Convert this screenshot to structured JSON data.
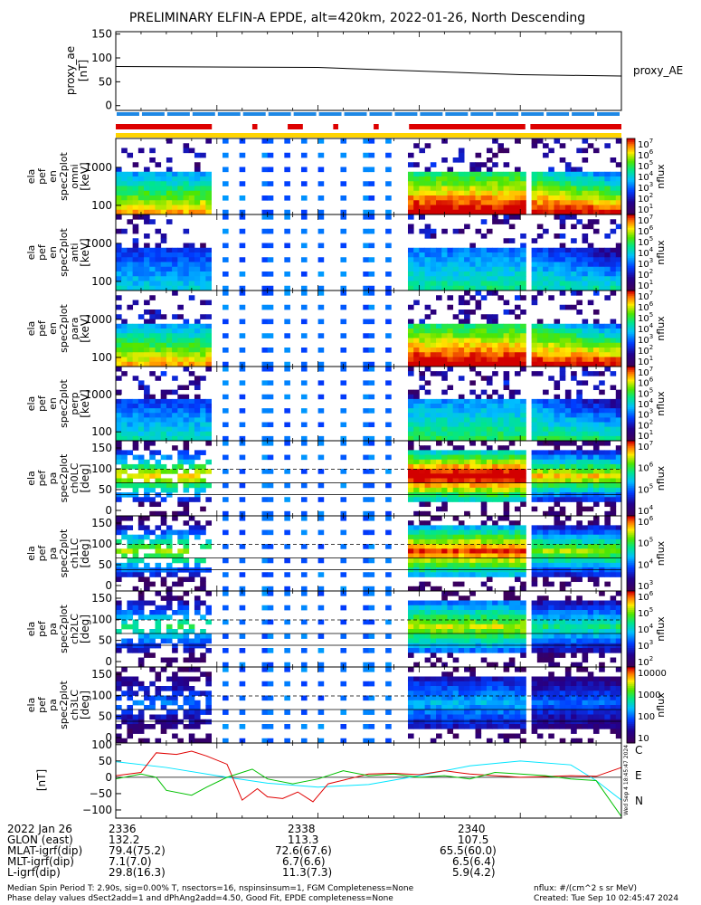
{
  "title": "PRELIMINARY ELFIN-A EPDE, alt=420km, 2022-01-26, North Descending",
  "chart_data": [
    {
      "type": "line",
      "panel": "proxy_ae",
      "ylabel": "proxy_ae",
      "yunits": "[nT]",
      "right_label": "proxy_AE",
      "ylim": [
        -10,
        155
      ],
      "yticks": [
        "150",
        "100",
        "50",
        "0"
      ],
      "x": [
        0,
        0.4,
        0.8,
        1.0
      ],
      "values": [
        82,
        80,
        65,
        62
      ]
    },
    {
      "type": "heatmap",
      "panel": "bars",
      "science_zones": [
        [
          0.0,
          0.19
        ],
        [
          0.27,
          0.28
        ],
        [
          0.34,
          0.37
        ],
        [
          0.43,
          0.44
        ],
        [
          0.51,
          0.52
        ],
        [
          0.58,
          0.81
        ],
        [
          0.82,
          1.0
        ]
      ],
      "yellow_bar": [
        0.0,
        1.0
      ]
    },
    {
      "type": "heatmap",
      "panel": "en_omni",
      "ylabel": [
        "ela",
        "pef",
        "en",
        "spec2plot",
        "omni"
      ],
      "yunits": "[keV]",
      "yticks": [
        "1000",
        "100"
      ],
      "cbar_label": "nflux",
      "cbar_ticks": [
        "10",
        "10",
        "10",
        "10",
        "10",
        "10",
        "10"
      ],
      "cbar_exps": [
        "7",
        "6",
        "5",
        "4",
        "3",
        "2",
        "1"
      ]
    },
    {
      "type": "heatmap",
      "panel": "en_anti",
      "ylabel": [
        "ela",
        "pef",
        "en",
        "spec2plot",
        "anti"
      ],
      "yunits": "[keV]",
      "yticks": [
        "1000",
        "100"
      ],
      "cbar_label": "nflux",
      "cbar_ticks": [
        "10",
        "10",
        "10",
        "10",
        "10",
        "10",
        "10"
      ],
      "cbar_exps": [
        "7",
        "6",
        "5",
        "4",
        "3",
        "2",
        "1"
      ]
    },
    {
      "type": "heatmap",
      "panel": "en_para",
      "ylabel": [
        "ela",
        "pef",
        "en",
        "spec2plot",
        "para"
      ],
      "yunits": "[keV]",
      "yticks": [
        "1000",
        "100"
      ],
      "cbar_label": "nflux",
      "cbar_ticks": [
        "10",
        "10",
        "10",
        "10",
        "10",
        "10",
        "10"
      ],
      "cbar_exps": [
        "7",
        "6",
        "5",
        "4",
        "3",
        "2",
        "1"
      ]
    },
    {
      "type": "heatmap",
      "panel": "en_perp",
      "ylabel": [
        "ela",
        "pef",
        "en",
        "spec2plot",
        "perp"
      ],
      "yunits": "[keV]",
      "yticks": [
        "1000",
        "100"
      ],
      "cbar_label": "nflux",
      "cbar_ticks": [
        "10",
        "10",
        "10",
        "10",
        "10",
        "10",
        "10"
      ],
      "cbar_exps": [
        "7",
        "6",
        "5",
        "4",
        "3",
        "2",
        "1"
      ]
    },
    {
      "type": "heatmap",
      "panel": "ch0LC",
      "ylabel": [
        "ela",
        "pef",
        "pa",
        "spec2plot",
        "ch0LC"
      ],
      "yunits": "[deg]",
      "yticks": [
        "150",
        "100",
        "50",
        "0"
      ],
      "cbar_label": "nflux",
      "cbar_ticks": [
        "10",
        "10",
        "10",
        "10"
      ],
      "cbar_exps": [
        "7",
        "6",
        "5",
        "4"
      ]
    },
    {
      "type": "heatmap",
      "panel": "ch1LC",
      "ylabel": [
        "ela",
        "pef",
        "pa",
        "spec2plot",
        "ch1LC"
      ],
      "yunits": "[deg]",
      "yticks": [
        "150",
        "100",
        "50",
        "0"
      ],
      "cbar_label": "nflux",
      "cbar_ticks": [
        "10",
        "10",
        "10",
        "10"
      ],
      "cbar_exps": [
        "6",
        "5",
        "4",
        "3"
      ]
    },
    {
      "type": "heatmap",
      "panel": "ch2LC",
      "ylabel": [
        "ela",
        "pef",
        "pa",
        "spec2plot",
        "ch2LC"
      ],
      "yunits": "[deg]",
      "yticks": [
        "150",
        "100",
        "50",
        "0"
      ],
      "cbar_label": "nflux",
      "cbar_ticks": [
        "10",
        "10",
        "10",
        "10",
        "10"
      ],
      "cbar_exps": [
        "6",
        "5",
        "4",
        "3",
        "2"
      ]
    },
    {
      "type": "heatmap",
      "panel": "ch3LC",
      "ylabel": [
        "ela",
        "pef",
        "pa",
        "spec2plot",
        "ch3LC"
      ],
      "yunits": "[deg]",
      "yticks": [
        "150",
        "100",
        "50",
        "0"
      ],
      "cbar_label": "nflux",
      "cbar_ticks": [
        "10000",
        "1000",
        "100",
        "10"
      ],
      "cbar_exps": [
        "",
        "",
        "",
        ""
      ]
    },
    {
      "type": "line",
      "panel": "fgm",
      "yunits": "[nT]",
      "ylim": [
        -125,
        105
      ],
      "yticks": [
        "100",
        "50",
        "0",
        "−50",
        "−100"
      ],
      "series": [
        {
          "name": "C",
          "color": "#00e5ff",
          "x": [
            0,
            0.1,
            0.2,
            0.3,
            0.4,
            0.5,
            0.6,
            0.7,
            0.8,
            0.9,
            0.95,
            1.0
          ],
          "values": [
            48,
            30,
            5,
            -18,
            -30,
            -22,
            5,
            35,
            50,
            38,
            -10,
            -70
          ]
        },
        {
          "name": "E",
          "color": "#e00000",
          "x": [
            0,
            0.05,
            0.08,
            0.12,
            0.15,
            0.18,
            0.22,
            0.25,
            0.28,
            0.3,
            0.33,
            0.36,
            0.39,
            0.42,
            0.46,
            0.5,
            0.55,
            0.6,
            0.65,
            0.7,
            0.75,
            0.8,
            0.85,
            0.9,
            0.95,
            1.0
          ],
          "values": [
            5,
            15,
            75,
            70,
            80,
            65,
            40,
            -70,
            -35,
            -60,
            -65,
            -45,
            -75,
            -20,
            -5,
            10,
            12,
            8,
            20,
            10,
            5,
            0,
            2,
            5,
            3,
            30
          ]
        },
        {
          "name": "N",
          "color": "#00c000",
          "x": [
            0,
            0.05,
            0.08,
            0.1,
            0.15,
            0.18,
            0.22,
            0.27,
            0.3,
            0.35,
            0.4,
            0.45,
            0.5,
            0.55,
            0.6,
            0.65,
            0.7,
            0.75,
            0.8,
            0.85,
            0.9,
            0.95,
            1.0
          ],
          "values": [
            -5,
            10,
            0,
            -40,
            -55,
            -30,
            0,
            25,
            -5,
            -20,
            -5,
            20,
            5,
            10,
            0,
            5,
            -5,
            15,
            10,
            5,
            -5,
            -10,
            -120
          ]
        }
      ]
    }
  ],
  "xaxis": {
    "labels": [
      {
        "name": "2022 Jan 26",
        "ticks": [
          "2336",
          "2338",
          "2340"
        ]
      },
      {
        "name": "GLON (east)",
        "ticks": [
          "132.2",
          "113.3",
          "107.5"
        ]
      },
      {
        "name": "MLAT-igrf(dip)",
        "ticks": [
          "79.4(75.2)",
          "72.6(67.6)",
          "65.5(60.0)"
        ]
      },
      {
        "name": "MLT-igrf(dip)",
        "ticks": [
          "7.1(7.0)",
          "6.7(6.6)",
          "6.5(6.4)"
        ]
      },
      {
        "name": "L-igrf(dip)",
        "ticks": [
          "29.8(16.3)",
          "11.3(7.3)",
          "5.9(4.2)"
        ]
      }
    ]
  },
  "footer": {
    "line1": "Median Spin Period T: 2.90s, sig=0.00% T, nsectors=16, nspinsinsum=1, FGM Completeness=None",
    "line2": "Phase delay values dSect2add=1 and dPhAng2add=4.50, Good Fit, EPDE completeness=None",
    "units": "nflux: #/(cm^2 s sr MeV)",
    "created": "Created: Tue Sep 10 02:45:47 2024"
  },
  "side_stamp": "Wed Sep  4 18:45:47 2024",
  "colors": {
    "red_bar": "#dd0000",
    "blue_bar": "#1e88e5",
    "yellow_bar": "#ffd400"
  }
}
